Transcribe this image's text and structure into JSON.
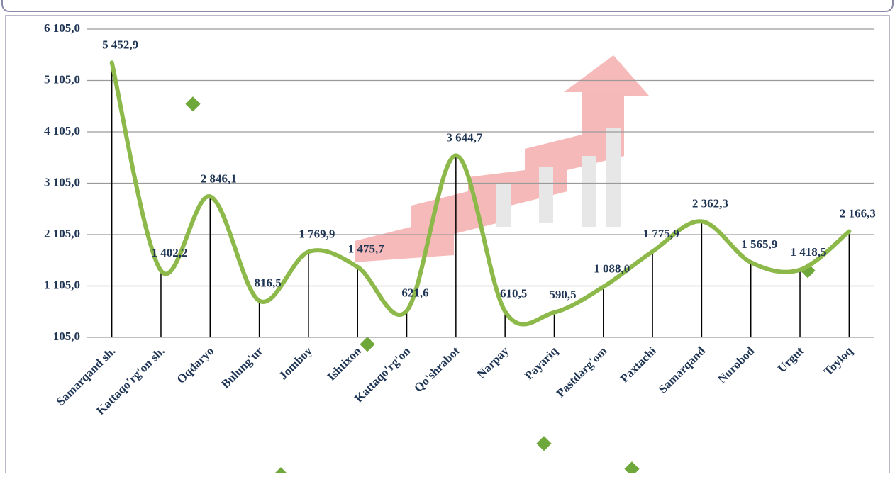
{
  "chart_data": {
    "type": "line",
    "categories": [
      "Samarqand sh.",
      "Kattaqo'rg'on sh.",
      "Oqdaryo",
      "Bulung'ur",
      "Jomboy",
      "Ishtixon",
      "Kattaqo'rg'on",
      "Qo'shrabot",
      "Narpay",
      "Payariq",
      "Pastdarg'om",
      "Paxtachi",
      "Samarqand",
      "Nurobod",
      "Urgut",
      "Toyloq"
    ],
    "values": [
      5452.9,
      1402.2,
      2846.1,
      816.5,
      1769.9,
      1475.7,
      621.6,
      3644.7,
      610.5,
      590.5,
      1088.0,
      1775.9,
      2362.3,
      1565.9,
      1418.5,
      2166.3
    ],
    "value_labels": [
      "5 452,9",
      "1 402,2",
      "2 846,1",
      "816,5",
      "1 769,9",
      "1 475,7",
      "621,6",
      "3 644,7",
      "610,5",
      "590,5",
      "1 088,0",
      "1 775,9",
      "2 362,3",
      "1 565,9",
      "1 418,5",
      "2 166,3"
    ],
    "color": "#8db84a",
    "ylim": [
      105,
      6105
    ],
    "yticks": [
      {
        "value": 105,
        "label": "105,0"
      },
      {
        "value": 1105,
        "label": "1 105,0"
      },
      {
        "value": 2105,
        "label": "2 105,0"
      },
      {
        "value": 3105,
        "label": "3 105,0"
      },
      {
        "value": 4105,
        "label": "4 105,0"
      },
      {
        "value": 5105,
        "label": "5 105,0"
      },
      {
        "value": 6105,
        "label": "6 105,0"
      }
    ],
    "grid": true
  }
}
